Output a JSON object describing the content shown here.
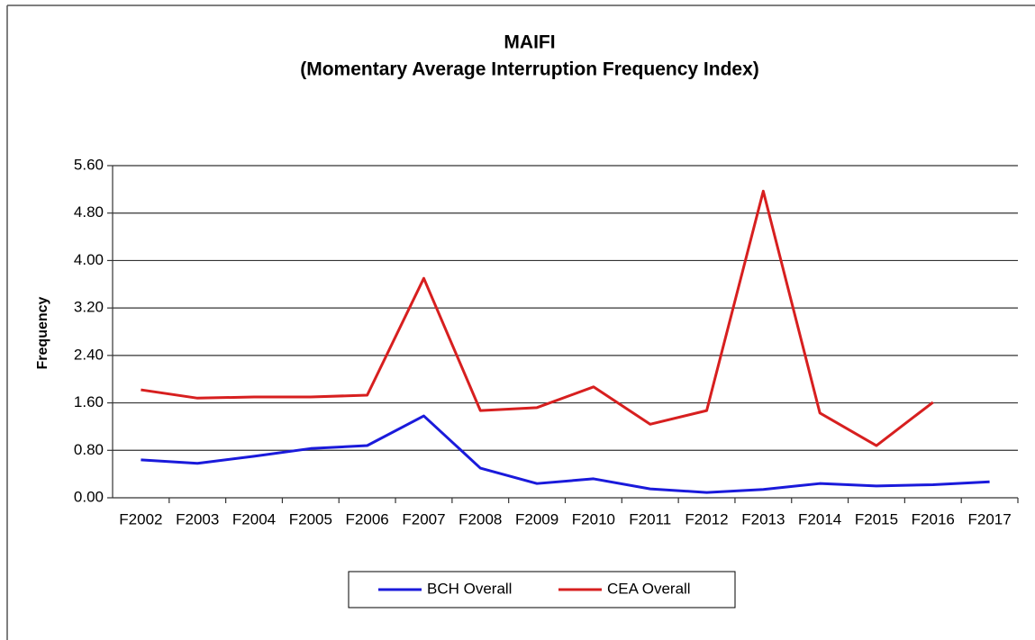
{
  "chart_data": {
    "type": "line",
    "title": "MAIFI",
    "subtitle": "(Momentary Average Interruption Frequency Index)",
    "y_label": "Frequency",
    "categories": [
      "F2002",
      "F2003",
      "F2004",
      "F2005",
      "F2006",
      "F2007",
      "F2008",
      "F2009",
      "F2010",
      "F2011",
      "F2012",
      "F2013",
      "F2014",
      "F2015",
      "F2016",
      "F2017"
    ],
    "series": [
      {
        "name": "BCH Overall",
        "color": "#1a1adb",
        "values": [
          0.64,
          0.58,
          0.7,
          0.83,
          0.88,
          1.38,
          0.5,
          0.24,
          0.32,
          0.15,
          0.09,
          0.14,
          0.24,
          0.2,
          0.22,
          0.27
        ]
      },
      {
        "name": "CEA Overall",
        "color": "#d71f1f",
        "values": [
          1.82,
          1.68,
          1.7,
          1.7,
          1.73,
          3.7,
          1.47,
          1.52,
          1.87,
          1.24,
          1.47,
          5.17,
          1.43,
          0.88,
          1.61,
          null
        ]
      }
    ],
    "ylim": [
      0,
      5.6
    ],
    "yticks": [
      {
        "value": 0,
        "label": "0.00"
      },
      {
        "value": 0.8,
        "label": "0.80"
      },
      {
        "value": 1.6,
        "label": "1.60"
      },
      {
        "value": 2.4,
        "label": "2.40"
      },
      {
        "value": 3.2,
        "label": "3.20"
      },
      {
        "value": 4.0,
        "label": "4.00"
      },
      {
        "value": 4.8,
        "label": "4.80"
      },
      {
        "value": 5.6,
        "label": "5.60"
      }
    ],
    "grid": true,
    "legend": "bottom"
  }
}
